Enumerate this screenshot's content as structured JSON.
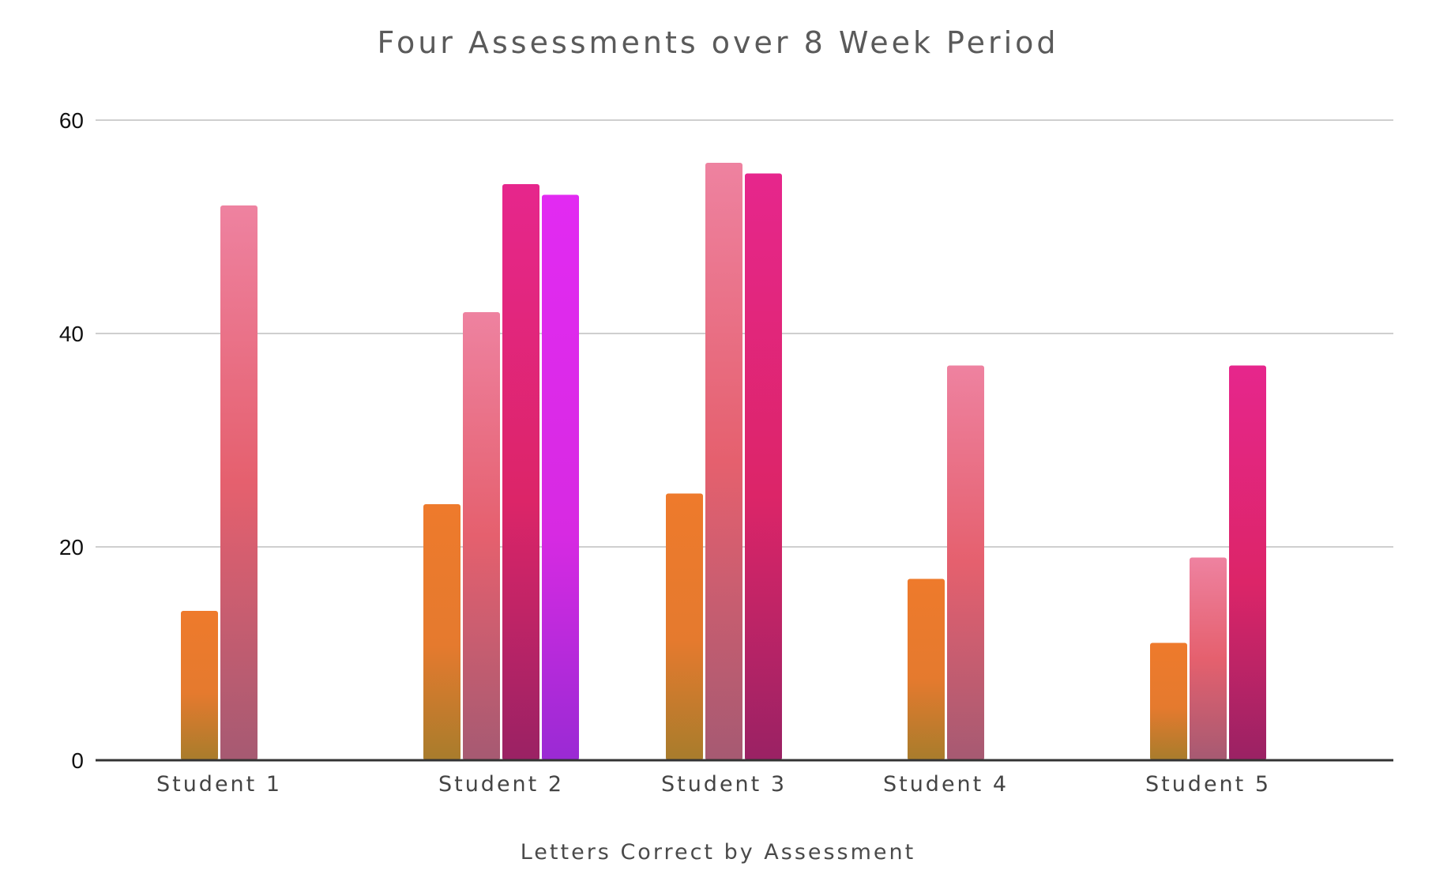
{
  "chart_data": {
    "type": "bar",
    "title": "Four Assessments over 8 Week Period",
    "xlabel": "Letters Correct by Assessment",
    "ylabel": "",
    "categories": [
      "Student 1",
      "Student 2",
      "Student 3",
      "Student 4",
      "Student 5"
    ],
    "series": [
      {
        "values": [
          14,
          24,
          25,
          17,
          11
        ],
        "color": "#e8782e"
      },
      {
        "values": [
          52,
          42,
          56,
          37,
          19
        ],
        "color": "#e85f7c"
      },
      {
        "values": [
          null,
          54,
          55,
          null,
          37
        ],
        "color": "#e0237e"
      },
      {
        "values": [
          null,
          53,
          null,
          null,
          null
        ],
        "color": "#e02ae8"
      }
    ],
    "ylim": [
      0,
      60
    ],
    "yticks": [
      0,
      20,
      40,
      60
    ],
    "grid": true,
    "legend": "none"
  }
}
